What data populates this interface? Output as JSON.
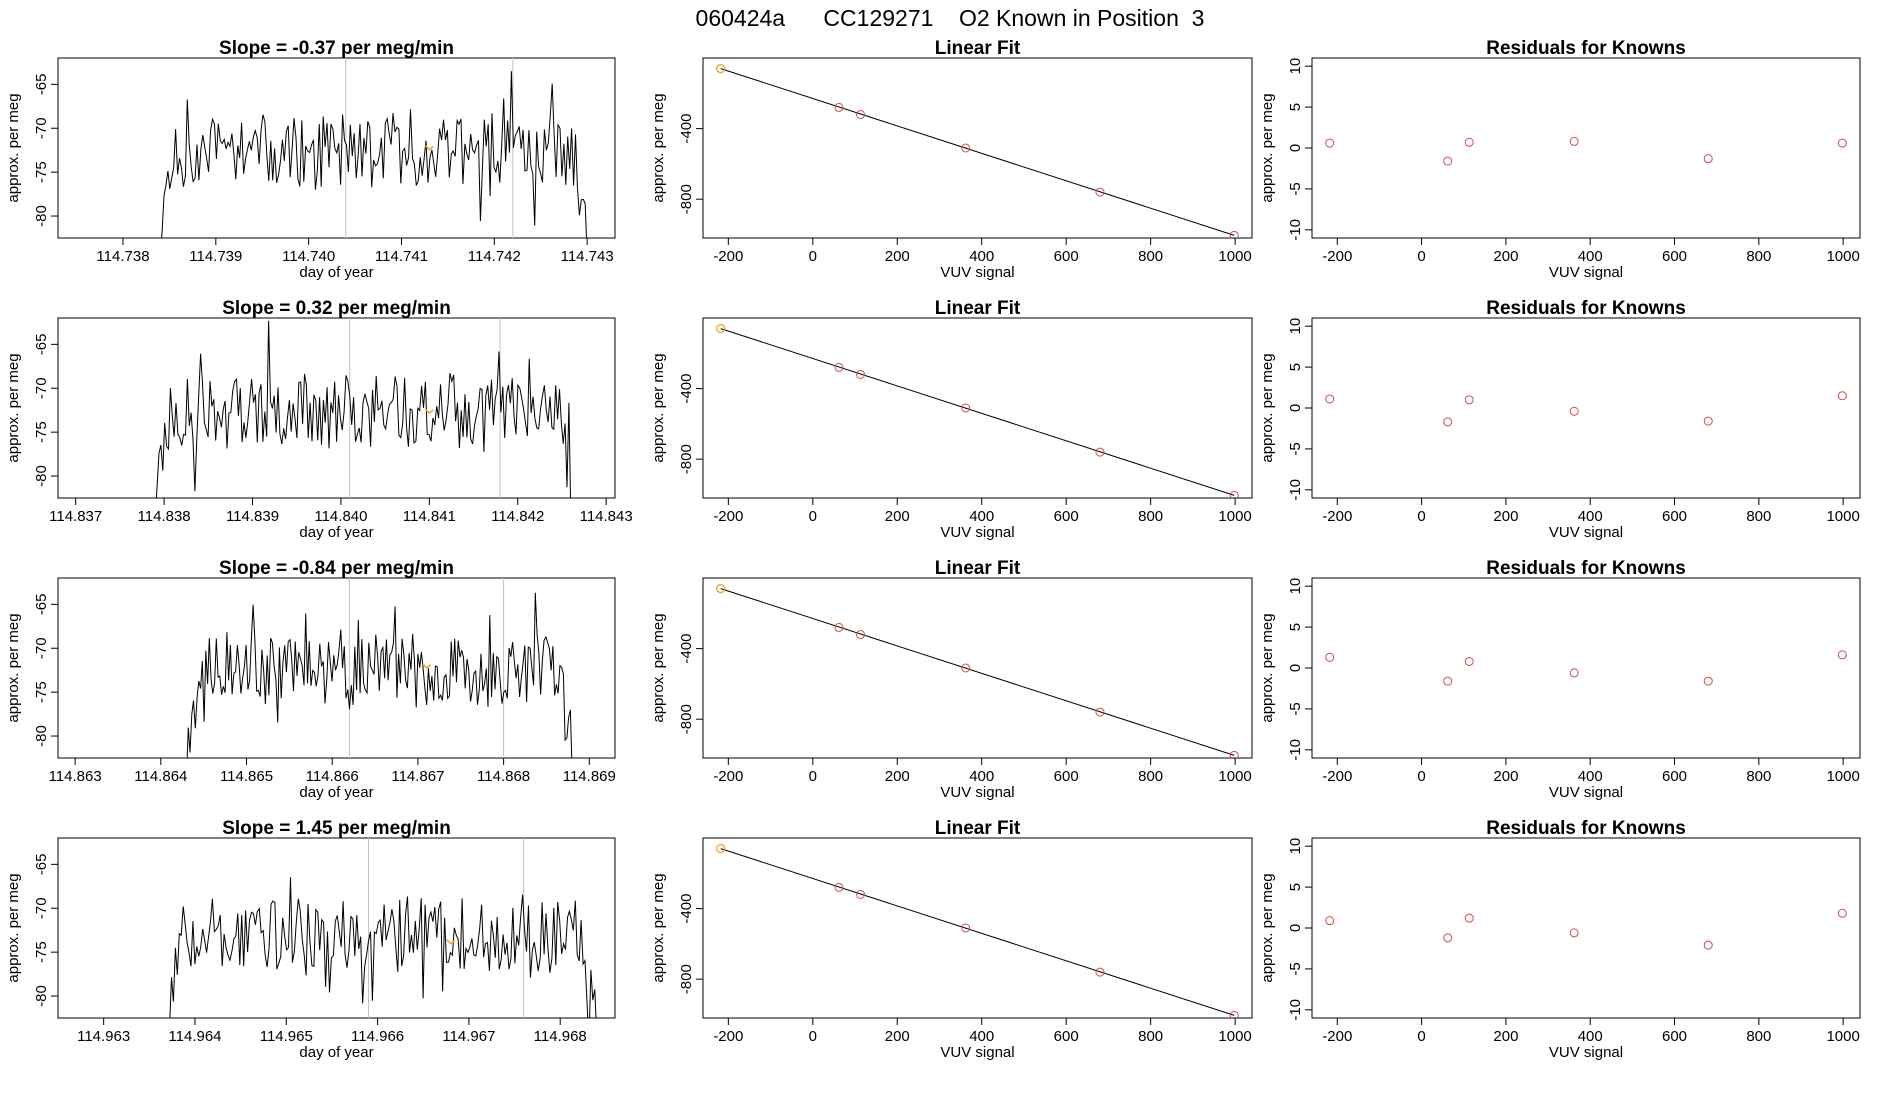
{
  "page_title": "060424a      CC129271    O2 Known in Position  3",
  "colors": {
    "trace": "#000000",
    "vline": "#c0c0c0",
    "highlight": "#f5a623",
    "point": "#d14b4b",
    "fit": "#000000"
  },
  "chart_data": [
    {
      "type": "line",
      "row": 0,
      "col": 0,
      "title": "Slope =  -0.37  per meg/min",
      "xlabel": "day of year",
      "ylabel": "approx. per meg",
      "xlim": [
        114.7373,
        114.7433
      ],
      "ylim": [
        -82.5,
        -62
      ],
      "x_ticks": [
        114.738,
        114.739,
        114.74,
        114.741,
        114.742,
        114.743
      ],
      "x_tick_labels": [
        "114.738",
        "114.739",
        "114.740",
        "114.741",
        "114.742",
        "114.743"
      ],
      "y_ticks": [
        -80,
        -75,
        -70,
        -65
      ],
      "y_tick_labels": [
        "-80",
        "-75",
        "-70",
        "-65"
      ],
      "vlines": [
        114.7404,
        114.7422
      ],
      "start": 114.7384,
      "end": 114.743,
      "trace_mean": -72.5,
      "seed": 11,
      "highlight": {
        "x": 114.7413,
        "y": -72.2
      }
    },
    {
      "type": "line",
      "row": 1,
      "col": 0,
      "title": "Slope =  0.32  per meg/min",
      "xlabel": "day of year",
      "ylabel": "approx. per meg",
      "xlim": [
        114.8368,
        114.8431
      ],
      "ylim": [
        -82.5,
        -62
      ],
      "x_ticks": [
        114.837,
        114.838,
        114.839,
        114.84,
        114.841,
        114.842,
        114.843
      ],
      "x_tick_labels": [
        "114.837",
        "114.838",
        "114.839",
        "114.840",
        "114.841",
        "114.842",
        "114.843"
      ],
      "y_ticks": [
        -80,
        -75,
        -70,
        -65
      ],
      "y_tick_labels": [
        "-80",
        "-75",
        "-70",
        "-65"
      ],
      "vlines": [
        114.8401,
        114.8418
      ],
      "start": 114.8379,
      "end": 114.8426,
      "trace_mean": -72.5,
      "seed": 23,
      "highlight": {
        "x": 114.841,
        "y": -72.6
      }
    },
    {
      "type": "line",
      "row": 2,
      "col": 0,
      "title": "Slope =  -0.84  per meg/min",
      "xlabel": "day of year",
      "ylabel": "approx. per meg",
      "xlim": [
        114.8628,
        114.8693
      ],
      "ylim": [
        -82.5,
        -62
      ],
      "x_ticks": [
        114.863,
        114.864,
        114.865,
        114.866,
        114.867,
        114.868,
        114.869
      ],
      "x_tick_labels": [
        "114.863",
        "114.864",
        "114.865",
        "114.866",
        "114.867",
        "114.868",
        "114.869"
      ],
      "y_ticks": [
        -80,
        -75,
        -70,
        -65
      ],
      "y_tick_labels": [
        "-80",
        "-75",
        "-70",
        "-65"
      ],
      "vlines": [
        114.8662,
        114.868
      ],
      "start": 114.8643,
      "end": 114.8688,
      "trace_mean": -72.3,
      "seed": 37,
      "highlight": {
        "x": 114.8671,
        "y": -72.0
      }
    },
    {
      "type": "line",
      "row": 3,
      "col": 0,
      "title": "Slope =  1.45  per meg/min",
      "xlabel": "day of year",
      "ylabel": "approx. per meg",
      "xlim": [
        114.9625,
        114.9686
      ],
      "ylim": [
        -82.5,
        -62
      ],
      "x_ticks": [
        114.963,
        114.964,
        114.965,
        114.966,
        114.967,
        114.968
      ],
      "x_tick_labels": [
        "114.963",
        "114.964",
        "114.965",
        "114.966",
        "114.967",
        "114.968"
      ],
      "y_ticks": [
        -80,
        -75,
        -70,
        -65
      ],
      "y_tick_labels": [
        "-80",
        "-75",
        "-70",
        "-65"
      ],
      "vlines": [
        114.9659,
        114.9676
      ],
      "start": 114.9637,
      "end": 114.9684,
      "trace_mean": -73.0,
      "seed": 53,
      "highlight": {
        "x": 114.9668,
        "y": -73.8
      }
    },
    {
      "type": "scatter",
      "row": 0,
      "col": 1,
      "title": "Linear Fit",
      "xlabel": "VUV signal",
      "ylabel": "approx. per meg",
      "xlim": [
        -260,
        1040
      ],
      "ylim": [
        -1020,
        0
      ],
      "x_ticks": [
        -200,
        0,
        200,
        400,
        600,
        800,
        1000
      ],
      "x_tick_labels": [
        "-200",
        "0",
        "200",
        "400",
        "600",
        "800",
        "1000"
      ],
      "y_ticks": [
        -800,
        -400
      ],
      "y_tick_labels": [
        "-800",
        "-400"
      ],
      "points": [
        [
          -218,
          -60
        ],
        [
          62,
          -280
        ],
        [
          113,
          -320
        ],
        [
          362,
          -510
        ],
        [
          680,
          -760
        ],
        [
          998,
          -1005
        ]
      ],
      "fit_line": [
        [
          -218,
          -60
        ],
        [
          998,
          -1005
        ]
      ],
      "highlight": [
        -218,
        -60
      ]
    },
    {
      "type": "scatter",
      "row": 1,
      "col": 1,
      "title": "Linear Fit",
      "xlabel": "VUV signal",
      "ylabel": "approx. per meg",
      "xlim": [
        -260,
        1040
      ],
      "ylim": [
        -1020,
        0
      ],
      "x_ticks": [
        -200,
        0,
        200,
        400,
        600,
        800,
        1000
      ],
      "x_tick_labels": [
        "-200",
        "0",
        "200",
        "400",
        "600",
        "800",
        "1000"
      ],
      "y_ticks": [
        -800,
        -400
      ],
      "y_tick_labels": [
        "-800",
        "-400"
      ],
      "points": [
        [
          -218,
          -60
        ],
        [
          62,
          -280
        ],
        [
          113,
          -320
        ],
        [
          362,
          -510
        ],
        [
          680,
          -760
        ],
        [
          998,
          -1005
        ]
      ],
      "fit_line": [
        [
          -218,
          -60
        ],
        [
          998,
          -1005
        ]
      ],
      "highlight": [
        -218,
        -60
      ]
    },
    {
      "type": "scatter",
      "row": 2,
      "col": 1,
      "title": "Linear Fit",
      "xlabel": "VUV signal",
      "ylabel": "approx. per meg",
      "xlim": [
        -260,
        1040
      ],
      "ylim": [
        -1020,
        0
      ],
      "x_ticks": [
        -200,
        0,
        200,
        400,
        600,
        800,
        1000
      ],
      "x_tick_labels": [
        "-200",
        "0",
        "200",
        "400",
        "600",
        "800",
        "1000"
      ],
      "y_ticks": [
        -800,
        -400
      ],
      "y_tick_labels": [
        "-800",
        "-400"
      ],
      "points": [
        [
          -218,
          -60
        ],
        [
          62,
          -280
        ],
        [
          113,
          -320
        ],
        [
          362,
          -510
        ],
        [
          680,
          -760
        ],
        [
          998,
          -1005
        ]
      ],
      "fit_line": [
        [
          -218,
          -60
        ],
        [
          998,
          -1005
        ]
      ],
      "highlight": [
        -218,
        -60
      ]
    },
    {
      "type": "scatter",
      "row": 3,
      "col": 1,
      "title": "Linear Fit",
      "xlabel": "VUV signal",
      "ylabel": "approx. per meg",
      "xlim": [
        -260,
        1040
      ],
      "ylim": [
        -1020,
        0
      ],
      "x_ticks": [
        -200,
        0,
        200,
        400,
        600,
        800,
        1000
      ],
      "x_tick_labels": [
        "-200",
        "0",
        "200",
        "400",
        "600",
        "800",
        "1000"
      ],
      "y_ticks": [
        -800,
        -400
      ],
      "y_tick_labels": [
        "-800",
        "-400"
      ],
      "points": [
        [
          -218,
          -60
        ],
        [
          62,
          -280
        ],
        [
          113,
          -320
        ],
        [
          362,
          -510
        ],
        [
          680,
          -760
        ],
        [
          998,
          -1005
        ]
      ],
      "fit_line": [
        [
          -218,
          -60
        ],
        [
          998,
          -1005
        ]
      ],
      "highlight": [
        -218,
        -60
      ]
    },
    {
      "type": "scatter",
      "row": 0,
      "col": 2,
      "title": "Residuals for Knowns",
      "xlabel": "VUV signal",
      "ylabel": "approx. per meg",
      "xlim": [
        -260,
        1040
      ],
      "ylim": [
        -11,
        11
      ],
      "x_ticks": [
        -200,
        0,
        200,
        400,
        600,
        800,
        1000
      ],
      "x_tick_labels": [
        "-200",
        "0",
        "200",
        "400",
        "600",
        "800",
        "1000"
      ],
      "y_ticks": [
        -10,
        -5,
        0,
        5,
        10
      ],
      "y_tick_labels": [
        "-10",
        "-5",
        "0",
        "5",
        "10"
      ],
      "points": [
        [
          -218,
          0.6
        ],
        [
          62,
          -1.6
        ],
        [
          113,
          0.7
        ],
        [
          362,
          0.8
        ],
        [
          680,
          -1.3
        ],
        [
          998,
          0.6
        ]
      ]
    },
    {
      "type": "scatter",
      "row": 1,
      "col": 2,
      "title": "Residuals for Knowns",
      "xlabel": "VUV signal",
      "ylabel": "approx. per meg",
      "xlim": [
        -260,
        1040
      ],
      "ylim": [
        -11,
        11
      ],
      "x_ticks": [
        -200,
        0,
        200,
        400,
        600,
        800,
        1000
      ],
      "x_tick_labels": [
        "-200",
        "0",
        "200",
        "400",
        "600",
        "800",
        "1000"
      ],
      "y_ticks": [
        -10,
        -5,
        0,
        5,
        10
      ],
      "y_tick_labels": [
        "-10",
        "-5",
        "0",
        "5",
        "10"
      ],
      "points": [
        [
          -218,
          1.1
        ],
        [
          62,
          -1.7
        ],
        [
          113,
          1.0
        ],
        [
          362,
          -0.4
        ],
        [
          680,
          -1.6
        ],
        [
          998,
          1.5
        ]
      ]
    },
    {
      "type": "scatter",
      "row": 2,
      "col": 2,
      "title": "Residuals for Knowns",
      "xlabel": "VUV signal",
      "ylabel": "approx. per meg",
      "xlim": [
        -260,
        1040
      ],
      "ylim": [
        -11,
        11
      ],
      "x_ticks": [
        -200,
        0,
        200,
        400,
        600,
        800,
        1000
      ],
      "x_tick_labels": [
        "-200",
        "0",
        "200",
        "400",
        "600",
        "800",
        "1000"
      ],
      "y_ticks": [
        -10,
        -5,
        0,
        5,
        10
      ],
      "y_tick_labels": [
        "-10",
        "-5",
        "0",
        "5",
        "10"
      ],
      "points": [
        [
          -218,
          1.3
        ],
        [
          62,
          -1.6
        ],
        [
          113,
          0.8
        ],
        [
          362,
          -0.6
        ],
        [
          680,
          -1.6
        ],
        [
          998,
          1.6
        ]
      ]
    },
    {
      "type": "scatter",
      "row": 3,
      "col": 2,
      "title": "Residuals for Knowns",
      "xlabel": "VUV signal",
      "ylabel": "approx. per meg",
      "xlim": [
        -260,
        1040
      ],
      "ylim": [
        -11,
        11
      ],
      "x_ticks": [
        -200,
        0,
        200,
        400,
        600,
        800,
        1000
      ],
      "x_tick_labels": [
        "-200",
        "0",
        "200",
        "400",
        "600",
        "800",
        "1000"
      ],
      "y_ticks": [
        -10,
        -5,
        0,
        5,
        10
      ],
      "y_tick_labels": [
        "-10",
        "-5",
        "0",
        "5",
        "10"
      ],
      "points": [
        [
          -218,
          0.9
        ],
        [
          62,
          -1.2
        ],
        [
          113,
          1.2
        ],
        [
          362,
          -0.6
        ],
        [
          680,
          -2.1
        ],
        [
          998,
          1.8
        ]
      ]
    }
  ]
}
